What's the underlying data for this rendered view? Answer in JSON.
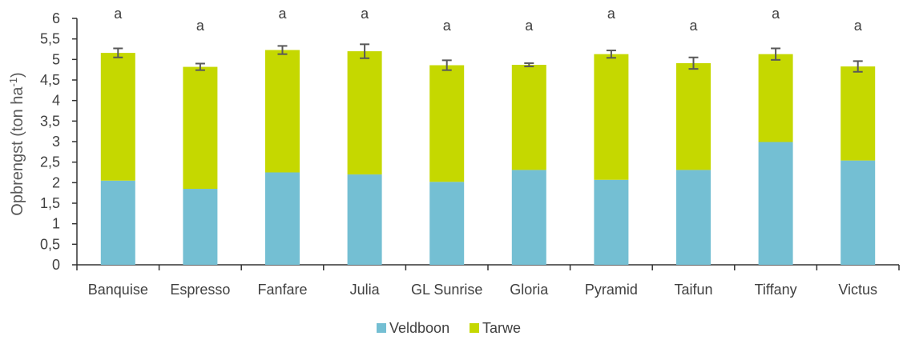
{
  "chart_data": {
    "type": "bar",
    "stacked": true,
    "ylabel": "Opbrengst (ton ha",
    "ylabel_sup": "-1",
    "ylabel_close": ")",
    "ylim": [
      0,
      6
    ],
    "yticks": [
      "0",
      "0,5",
      "1",
      "1,5",
      "2",
      "2,5",
      "3",
      "3,5",
      "4",
      "4,5",
      "5",
      "5,5",
      "6"
    ],
    "categories": [
      "Banquise",
      "Espresso",
      "Fanfare",
      "Julia",
      "GL Sunrise",
      "Gloria",
      "Pyramid",
      "Taifun",
      "Tiffany",
      "Victus"
    ],
    "series": [
      {
        "name": "Veldboon",
        "color": "#74BFD3",
        "values": [
          2.05,
          1.85,
          2.25,
          2.2,
          2.02,
          2.31,
          2.07,
          2.31,
          2.99,
          2.54
        ]
      },
      {
        "name": "Tarwe",
        "color": "#C5D800",
        "values": [
          3.11,
          2.97,
          2.98,
          3.0,
          2.84,
          2.56,
          3.06,
          2.6,
          2.14,
          2.29
        ]
      }
    ],
    "totals": [
      5.16,
      4.82,
      5.23,
      5.2,
      4.86,
      4.87,
      5.13,
      4.91,
      5.13,
      4.83
    ],
    "error": [
      0.11,
      0.08,
      0.1,
      0.17,
      0.12,
      0.04,
      0.09,
      0.14,
      0.14,
      0.13
    ],
    "significance": [
      "a",
      "a",
      "a",
      "a",
      "a",
      "a",
      "a",
      "a",
      "a",
      "a"
    ],
    "grid": false,
    "legend_position": "bottom"
  }
}
